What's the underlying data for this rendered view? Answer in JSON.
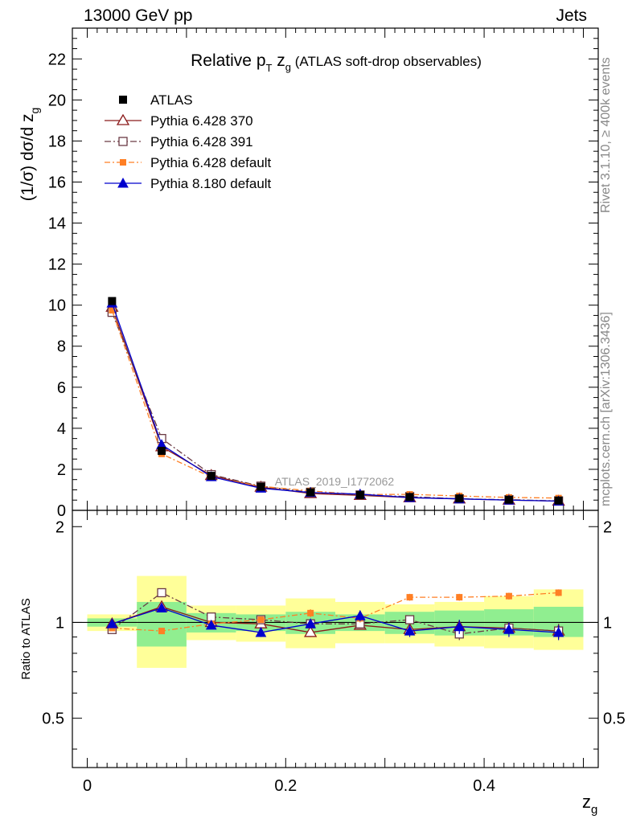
{
  "header": {
    "left": "13000 GeV pp",
    "right": "Jets"
  },
  "side_labels": {
    "rivet": "Rivet 3.1.10, ≥ 400k events",
    "mcplots": "mcplots.cern.ch [arXiv:1306.3436]"
  },
  "chart_data": {
    "type": "line",
    "title_parts": {
      "main": "Relative p",
      "sub_T": "T",
      "z": " z",
      "sub_g": "g",
      "rest": " (ATLAS soft-drop observables)"
    },
    "watermark": "ATLAS_2019_I1772062",
    "ylabel": {
      "main": "(1/σ) dσ/d z",
      "sub": "g"
    },
    "xlabel": {
      "main": "z",
      "sub": "g"
    },
    "ratio_ylabel": "Ratio to ATLAS",
    "xlim": [
      -0.015,
      0.515
    ],
    "ylim": [
      0,
      23.5
    ],
    "ratio_ylim": [
      0.35,
      2.25
    ],
    "x_ticks": [
      "0",
      "0.2",
      "0.4"
    ],
    "x_tick_values": [
      0,
      0.2,
      0.4
    ],
    "y_ticks": [
      "0",
      "2",
      "4",
      "6",
      "8",
      "10",
      "12",
      "14",
      "16",
      "18",
      "20",
      "22"
    ],
    "y_tick_values": [
      0,
      2,
      4,
      6,
      8,
      10,
      12,
      14,
      16,
      18,
      20,
      22
    ],
    "ratio_ticks": [
      "0.5",
      "1",
      "2"
    ],
    "ratio_tick_values": [
      0.5,
      1,
      2
    ],
    "bins": [
      [
        0,
        0.05
      ],
      [
        0.05,
        0.1
      ],
      [
        0.1,
        0.15
      ],
      [
        0.15,
        0.2
      ],
      [
        0.2,
        0.25
      ],
      [
        0.25,
        0.3
      ],
      [
        0.3,
        0.35
      ],
      [
        0.35,
        0.4
      ],
      [
        0.4,
        0.45
      ],
      [
        0.45,
        0.5
      ]
    ],
    "x": [
      0.025,
      0.075,
      0.125,
      0.175,
      0.225,
      0.275,
      0.325,
      0.375,
      0.425,
      0.475
    ],
    "data": {
      "name": "ATLAS",
      "values": [
        10.2,
        2.9,
        1.68,
        1.15,
        0.88,
        0.75,
        0.65,
        0.58,
        0.52,
        0.48
      ],
      "band_inner": [
        [
          0.97,
          1.03
        ],
        [
          0.84,
          1.16
        ],
        [
          0.93,
          1.07
        ],
        [
          0.94,
          1.06
        ],
        [
          0.92,
          1.08
        ],
        [
          0.94,
          1.06
        ],
        [
          0.92,
          1.08
        ],
        [
          0.91,
          1.09
        ],
        [
          0.91,
          1.1
        ],
        [
          0.9,
          1.12
        ]
      ],
      "band_outer": [
        [
          0.94,
          1.06
        ],
        [
          0.72,
          1.4
        ],
        [
          0.88,
          1.13
        ],
        [
          0.87,
          1.13
        ],
        [
          0.83,
          1.19
        ],
        [
          0.86,
          1.16
        ],
        [
          0.86,
          1.14
        ],
        [
          0.84,
          1.16
        ],
        [
          0.83,
          1.21
        ],
        [
          0.82,
          1.27
        ]
      ]
    },
    "colors": {
      "band_inner": "#90ee90",
      "band_outer": "#ffff99",
      "data": "#000000"
    },
    "series": [
      {
        "name": "Pythia 6.428 370",
        "color": "#8b1a1a",
        "dash": "",
        "marker": "triangle-open",
        "values": [
          9.9,
          3.1,
          1.7,
          1.13,
          0.82,
          0.73,
          0.62,
          0.56,
          0.5,
          0.45
        ],
        "ratio": [
          0.99,
          1.12,
          1.0,
          0.99,
          0.93,
          0.98,
          0.95,
          0.97,
          0.96,
          0.94
        ],
        "ratio_err": [
          0.01,
          0.02,
          0.02,
          0.02,
          0.03,
          0.03,
          0.03,
          0.04,
          0.04,
          0.05
        ]
      },
      {
        "name": "Pythia 6.428 391",
        "color": "#6b3a44",
        "dash": "8,3,2,3",
        "marker": "square-open",
        "values": [
          9.65,
          3.5,
          1.74,
          1.18,
          0.88,
          0.75,
          0.67,
          0.56,
          0.52,
          0.46
        ],
        "ratio": [
          0.95,
          1.24,
          1.04,
          1.02,
          0.99,
          0.99,
          1.02,
          0.92,
          0.96,
          0.94
        ],
        "ratio_err": [
          0.01,
          0.02,
          0.02,
          0.02,
          0.03,
          0.03,
          0.03,
          0.04,
          0.04,
          0.05
        ]
      },
      {
        "name": "Pythia 6.428 default",
        "color": "#ff7f24",
        "dash": "7,3,2,3",
        "marker": "square-filled-small",
        "values": [
          9.75,
          2.75,
          1.62,
          1.17,
          0.95,
          0.77,
          0.78,
          0.7,
          0.63,
          0.6
        ],
        "ratio": [
          0.96,
          0.94,
          0.99,
          1.02,
          1.07,
          1.03,
          1.2,
          1.2,
          1.21,
          1.24
        ],
        "ratio_err": [
          0.01,
          0.02,
          0.02,
          0.02,
          0.03,
          0.03,
          0.03,
          0.03,
          0.03,
          0.03
        ]
      },
      {
        "name": "Pythia 8.180 default",
        "color": "#0000cd",
        "dash": "",
        "marker": "triangle-filled",
        "values": [
          10.1,
          3.2,
          1.64,
          1.08,
          0.87,
          0.79,
          0.62,
          0.56,
          0.5,
          0.45
        ],
        "ratio": [
          0.99,
          1.11,
          0.98,
          0.93,
          0.99,
          1.05,
          0.94,
          0.97,
          0.95,
          0.93
        ],
        "ratio_err": [
          0.01,
          0.02,
          0.02,
          0.03,
          0.03,
          0.04,
          0.04,
          0.05,
          0.05,
          0.05
        ]
      }
    ],
    "legend_position": "top-left"
  }
}
